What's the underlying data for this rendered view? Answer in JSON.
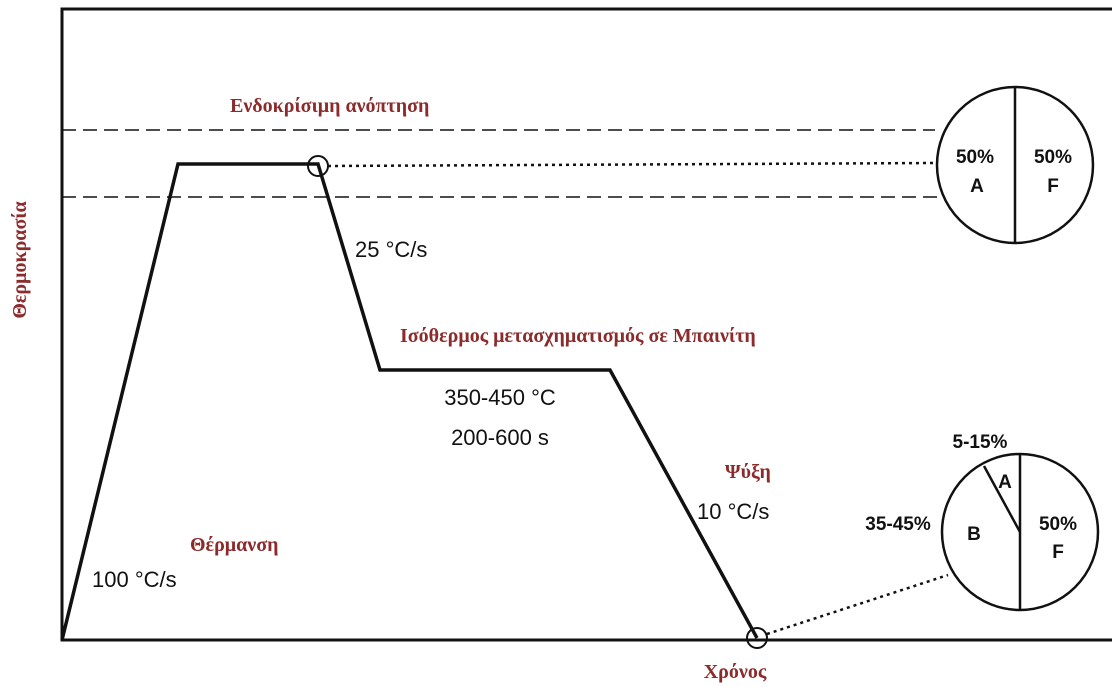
{
  "axes": {
    "y_label": "Θερμοκρασία",
    "x_label": "Χρόνος"
  },
  "stages": {
    "annealing": {
      "title": "Ενδοκρίσιμη ανόπτηση"
    },
    "heating": {
      "title": "Θέρμανση",
      "rate": "100 °C/s"
    },
    "quench": {
      "rate": "25 °C/s"
    },
    "isothermal": {
      "title": "Ισόθερμος  μετασχηματισμός σε Μπαινίτη",
      "temperature": "350-450 °C",
      "time": "200-600 s"
    },
    "cooling": {
      "title": "Ψύξη",
      "rate": "10 °C/s"
    }
  },
  "pies": [
    {
      "labels": [
        {
          "percent": "50%",
          "phase": "A"
        },
        {
          "percent": "50%",
          "phase": "F"
        }
      ]
    },
    {
      "labels": [
        {
          "percent": "5-15%",
          "phase": "A"
        },
        {
          "percent": "35-45%",
          "phase": "B"
        },
        {
          "percent": "50%",
          "phase": "F"
        }
      ]
    }
  ]
}
